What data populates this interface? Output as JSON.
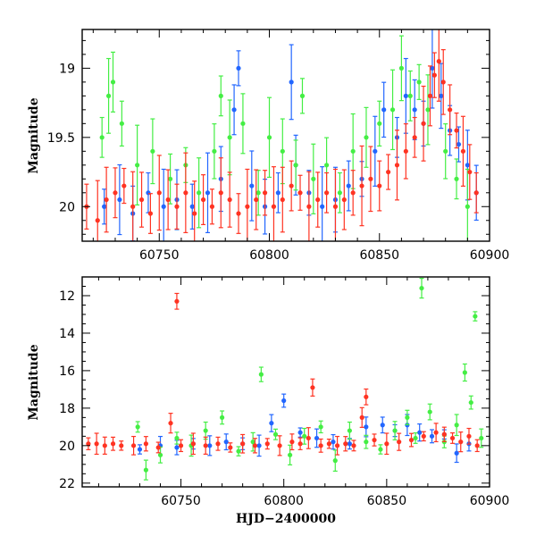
{
  "chart_data": [
    {
      "type": "scatter",
      "panel": "top",
      "ylabel": "Magnitude",
      "xlabel": "",
      "xlim": [
        60715,
        60900
      ],
      "ylim": [
        20.25,
        18.72
      ],
      "y_inverted": true,
      "x_ticks": [
        60750,
        60800,
        60850,
        60900
      ],
      "y_ticks": [
        19,
        19.5,
        20
      ],
      "error_bars": true,
      "series": [
        {
          "color": "#2266ff",
          "x": [
            60725,
            60732,
            60738,
            60745,
            60752,
            60758,
            60765,
            60772,
            60778,
            60784,
            60786,
            60792,
            60798,
            60804,
            60810,
            60812,
            60818,
            60824,
            60830,
            60836,
            60842,
            60848,
            60852,
            60858,
            60862,
            60866,
            60870,
            60874,
            60878,
            60882,
            60886,
            60890,
            60894
          ],
          "y": [
            20.0,
            19.95,
            20.05,
            19.9,
            20.0,
            19.95,
            20.0,
            19.9,
            19.8,
            19.3,
            19.0,
            19.85,
            20.0,
            19.9,
            19.1,
            19.7,
            19.9,
            20.0,
            19.95,
            19.85,
            19.8,
            19.6,
            19.3,
            19.5,
            19.2,
            19.3,
            19.4,
            19.0,
            19.2,
            19.45,
            19.55,
            19.7,
            19.9
          ]
        },
        {
          "color": "#44ee44",
          "x": [
            60724,
            60727,
            60729,
            60733,
            60740,
            60747,
            60755,
            60762,
            60768,
            60775,
            60778,
            60782,
            60788,
            60795,
            60800,
            60806,
            60812,
            60815,
            60820,
            60826,
            60832,
            60838,
            60844,
            60850,
            60856,
            60860,
            60864,
            60868,
            60872,
            60880,
            60885,
            60890
          ],
          "y": [
            19.5,
            19.2,
            19.1,
            19.4,
            19.7,
            19.6,
            19.8,
            19.7,
            19.9,
            19.6,
            19.2,
            19.5,
            19.4,
            19.9,
            19.5,
            19.6,
            19.7,
            19.2,
            19.8,
            19.7,
            19.9,
            19.6,
            19.5,
            19.4,
            19.3,
            19.0,
            19.2,
            19.1,
            19.3,
            19.6,
            19.8,
            20.0
          ]
        },
        {
          "color": "#ff3322",
          "x": [
            60717,
            60722,
            60726,
            60730,
            60734,
            60738,
            60742,
            60746,
            60750,
            60754,
            60758,
            60762,
            60766,
            60770,
            60774,
            60778,
            60782,
            60786,
            60790,
            60794,
            60798,
            60802,
            60806,
            60810,
            60814,
            60818,
            60822,
            60826,
            60830,
            60834,
            60838,
            60842,
            60846,
            60850,
            60854,
            60858,
            60862,
            60866,
            60870,
            60873,
            60875,
            60877,
            60879,
            60882,
            60885,
            60888,
            60891,
            60894
          ],
          "y": [
            20.0,
            20.1,
            19.95,
            19.9,
            19.85,
            20.0,
            19.95,
            20.05,
            19.9,
            19.95,
            20.0,
            19.9,
            20.05,
            19.95,
            20.0,
            19.9,
            19.95,
            20.05,
            20.0,
            19.95,
            19.9,
            20.0,
            19.95,
            19.85,
            19.9,
            20.0,
            19.95,
            19.9,
            20.0,
            19.95,
            19.9,
            19.85,
            19.8,
            19.85,
            19.75,
            19.7,
            19.6,
            19.5,
            19.4,
            19.2,
            19.05,
            18.95,
            19.1,
            19.3,
            19.45,
            19.6,
            19.75,
            19.9
          ]
        }
      ]
    },
    {
      "type": "scatter",
      "panel": "bottom",
      "ylabel": "Magnitude",
      "xlabel": "HJD−2400000",
      "xlim": [
        60702,
        60900
      ],
      "ylim": [
        22.2,
        11.0
      ],
      "y_inverted": true,
      "x_ticks": [
        60750,
        60800,
        60850,
        60900
      ],
      "y_ticks": [
        12,
        14,
        16,
        18,
        20,
        22
      ],
      "error_bars": true,
      "series": [
        {
          "color": "#2266ff",
          "x": [
            60730,
            60740,
            60748,
            60756,
            60764,
            60772,
            60780,
            60788,
            60794,
            60800,
            60808,
            60816,
            60824,
            60832,
            60840,
            60848,
            60854,
            60860,
            60866,
            60872,
            60878,
            60884,
            60890
          ],
          "y": [
            20.2,
            20.0,
            20.1,
            19.9,
            20.0,
            19.8,
            19.9,
            20.0,
            18.8,
            17.6,
            19.3,
            19.6,
            19.8,
            19.9,
            19.0,
            18.9,
            19.2,
            18.9,
            19.3,
            19.5,
            19.4,
            20.4,
            19.9
          ]
        },
        {
          "color": "#44ee44",
          "x": [
            60729,
            60733,
            60740,
            60748,
            60755,
            60762,
            60770,
            60778,
            60785,
            60789,
            60796,
            60803,
            60810,
            60818,
            60825,
            60832,
            60840,
            60847,
            60854,
            60860,
            60864,
            60867,
            60871,
            60878,
            60884,
            60888,
            60891,
            60893,
            60896
          ],
          "y": [
            19.0,
            21.3,
            20.5,
            19.6,
            20.0,
            19.2,
            18.5,
            20.3,
            19.8,
            16.2,
            19.4,
            20.5,
            19.5,
            19.0,
            20.8,
            19.2,
            19.8,
            20.2,
            19.2,
            18.5,
            19.6,
            11.6,
            18.2,
            19.8,
            18.9,
            16.1,
            17.7,
            13.1,
            19.6
          ]
        },
        {
          "color": "#ff3322",
          "x": [
            60705,
            60709,
            60713,
            60717,
            60721,
            60727,
            60733,
            60739,
            60745,
            60748,
            60750,
            60756,
            60762,
            60768,
            60774,
            60780,
            60786,
            60792,
            60798,
            60804,
            60808,
            60812,
            60814,
            60818,
            60822,
            60826,
            60830,
            60834,
            60838,
            60840,
            60844,
            60850,
            60856,
            60862,
            60868,
            60874,
            60878,
            60882,
            60886,
            60890,
            60894
          ],
          "y": [
            19.9,
            19.9,
            20.0,
            19.9,
            20.0,
            20.0,
            19.9,
            20.1,
            18.8,
            12.3,
            20.0,
            19.9,
            20.0,
            19.9,
            20.1,
            19.9,
            20.0,
            19.9,
            20.0,
            19.8,
            19.9,
            19.6,
            16.9,
            20.0,
            19.9,
            20.0,
            19.9,
            20.0,
            18.5,
            17.4,
            19.7,
            19.9,
            19.8,
            19.7,
            19.5,
            19.3,
            19.4,
            19.6,
            19.8,
            19.5,
            20.0
          ]
        }
      ]
    }
  ]
}
